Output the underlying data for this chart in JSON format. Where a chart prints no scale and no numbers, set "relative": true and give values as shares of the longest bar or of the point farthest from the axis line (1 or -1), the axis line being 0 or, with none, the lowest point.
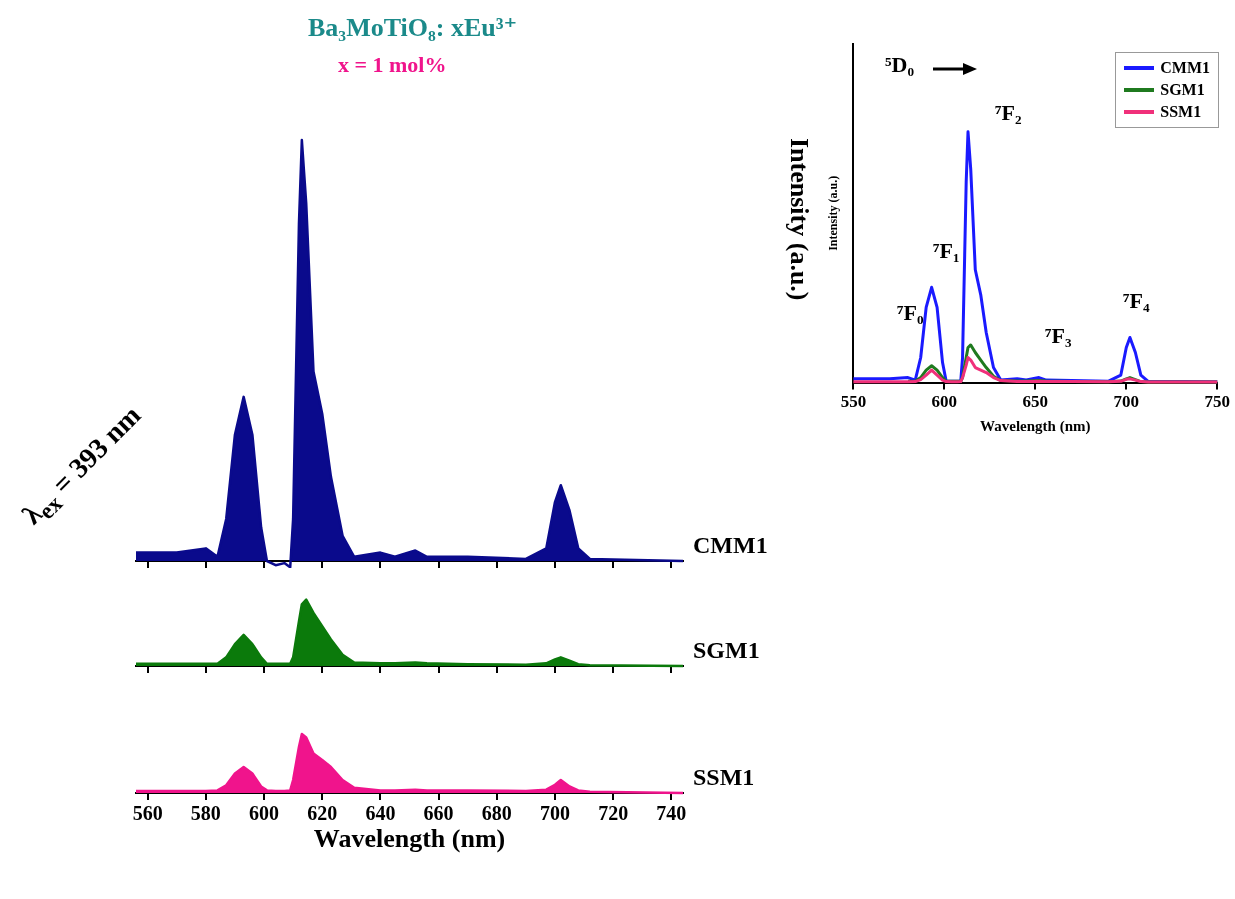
{
  "chart_data": [
    {
      "type": "area",
      "title": "Ba₃MoTiO₈: xEu³⁺",
      "ylabel": "Intensity (a.u.)",
      "relative": true,
      "tick_labels": false,
      "annotations": [
        "x = 1 mol%",
        "λ$_{ex}$ = 393 nm"
      ],
      "xlim": [
        556,
        744
      ],
      "xticks": [
        560,
        580,
        600,
        620,
        640,
        660,
        680,
        700,
        720,
        740
      ],
      "x": [
        556,
        570,
        580,
        584,
        587,
        590,
        593,
        596,
        599,
        601,
        604,
        607,
        609,
        610,
        612,
        613,
        614.5,
        617,
        620,
        623,
        627,
        631,
        640,
        645,
        652,
        656,
        670,
        690,
        697,
        700,
        702,
        705,
        708,
        712,
        744
      ],
      "series": [
        {
          "name": "CMM1",
          "color": "#0a0a8c",
          "values": [
            0.02,
            0.02,
            0.03,
            0.01,
            0.1,
            0.3,
            0.39,
            0.3,
            0.08,
            0,
            -0.01,
            -0.005,
            -0.015,
            0.1,
            0.8,
            1,
            0.85,
            0.45,
            0.35,
            0.2,
            0.06,
            0.01,
            0.02,
            0.01,
            0.025,
            0.01,
            0.01,
            0.005,
            0.03,
            0.14,
            0.18,
            0.12,
            0.03,
            0.005,
            0
          ]
        }
      ]
    },
    {
      "type": "area",
      "relative": true,
      "tick_labels": false,
      "xlim": [
        556,
        744
      ],
      "xticks": [
        560,
        580,
        600,
        620,
        640,
        660,
        680,
        700,
        720,
        740
      ],
      "x": [
        556,
        570,
        580,
        584,
        587,
        590,
        593,
        596,
        599,
        601,
        604,
        607,
        609,
        610,
        612,
        613,
        614.5,
        617,
        620,
        623,
        627,
        631,
        640,
        645,
        652,
        656,
        670,
        690,
        697,
        700,
        702,
        705,
        708,
        712,
        744
      ],
      "series": [
        {
          "name": "SGM1",
          "color": "#0b7a0b",
          "values": [
            0.033,
            0.033,
            0.033,
            0.033,
            0.13,
            0.33,
            0.47,
            0.33,
            0.13,
            0.033,
            0.033,
            0.033,
            0.033,
            0.13,
            0.67,
            0.93,
            1,
            0.8,
            0.6,
            0.4,
            0.17,
            0.053,
            0.04,
            0.04,
            0.053,
            0.04,
            0.027,
            0.02,
            0.04,
            0.1,
            0.13,
            0.08,
            0.027,
            0.013,
            0
          ]
        }
      ]
    },
    {
      "type": "area",
      "xlabel": "Wavelength (nm)",
      "relative": true,
      "xlim": [
        556,
        744
      ],
      "xticks": [
        560,
        580,
        600,
        620,
        640,
        660,
        680,
        700,
        720,
        740
      ],
      "x": [
        556,
        570,
        580,
        584,
        587,
        590,
        593,
        596,
        599,
        601,
        604,
        607,
        609,
        610,
        612,
        613,
        614.5,
        617,
        620,
        623,
        627,
        631,
        640,
        645,
        652,
        656,
        670,
        690,
        697,
        700,
        702,
        705,
        708,
        712,
        744
      ],
      "series": [
        {
          "name": "SSM1",
          "color": "#f0148c",
          "values": [
            0.033,
            0.033,
            0.033,
            0.044,
            0.13,
            0.33,
            0.44,
            0.33,
            0.11,
            0.044,
            0.033,
            0.033,
            0.044,
            0.22,
            0.78,
            1,
            0.94,
            0.67,
            0.56,
            0.44,
            0.22,
            0.089,
            0.044,
            0.044,
            0.056,
            0.044,
            0.044,
            0.033,
            0.056,
            0.14,
            0.22,
            0.11,
            0.044,
            0.022,
            0
          ]
        }
      ]
    },
    {
      "type": "line",
      "xlabel": "Wavelength (nm)",
      "ylabel": "Intensity (a.u.)",
      "relative": true,
      "legend": "top right",
      "annotations": [
        "⁵D₀",
        "⁷F₀",
        "⁷F₁",
        "⁷F₂",
        "⁷F₃",
        "⁷F₄"
      ],
      "xlim": [
        550,
        750
      ],
      "xticks": [
        550,
        600,
        650,
        700,
        750
      ],
      "x": [
        550,
        570,
        580,
        584,
        587,
        590,
        593,
        596,
        599,
        601,
        604,
        607,
        609,
        610,
        612,
        613,
        614.5,
        617,
        620,
        623,
        627,
        631,
        640,
        645,
        652,
        656,
        670,
        690,
        697,
        700,
        702,
        705,
        708,
        712,
        750
      ],
      "series": [
        {
          "name": "CMM1",
          "color": "#1a1aff",
          "values": [
            0.015,
            0.015,
            0.02,
            0.01,
            0.1,
            0.3,
            0.38,
            0.3,
            0.08,
            0.005,
            0.005,
            0.005,
            0.005,
            0.1,
            0.8,
            1,
            0.85,
            0.45,
            0.35,
            0.2,
            0.06,
            0.01,
            0.015,
            0.01,
            0.02,
            0.01,
            0.008,
            0.005,
            0.03,
            0.14,
            0.18,
            0.12,
            0.03,
            0.005,
            0.003
          ]
        },
        {
          "name": "SGM1",
          "color": "#1f7a1f",
          "values": [
            null,
            null,
            0.005,
            0.005,
            0.02,
            0.05,
            0.067,
            0.05,
            0.02,
            0.005,
            0.005,
            0.005,
            0.005,
            0.02,
            0.1,
            0.14,
            0.15,
            0.12,
            0.09,
            0.06,
            0.025,
            0.008,
            0.006,
            0.006,
            0.008,
            0.006,
            0.004,
            0.003,
            0.006,
            0.015,
            0.02,
            0.012,
            0.004,
            0.002,
            0.002
          ]
        },
        {
          "name": "SSM1",
          "color": "#f0307a",
          "values": [
            0.003,
            0.003,
            0.003,
            0.004,
            0.012,
            0.03,
            0.05,
            0.03,
            0.01,
            0.004,
            0.003,
            0.003,
            0.004,
            0.02,
            0.07,
            0.1,
            0.09,
            0.06,
            0.05,
            0.04,
            0.02,
            0.008,
            0.004,
            0.004,
            0.005,
            0.004,
            0.004,
            0.003,
            0.005,
            0.013,
            0.015,
            0.01,
            0.004,
            0.002,
            0.002
          ]
        }
      ]
    }
  ]
}
